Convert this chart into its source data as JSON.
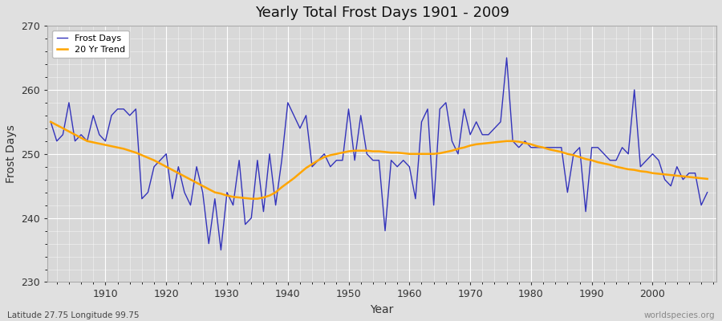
{
  "title": "Yearly Total Frost Days 1901 - 2009",
  "xlabel": "Year",
  "ylabel": "Frost Days",
  "subtitle": "Latitude 27.75 Longitude 99.75",
  "watermark": "worldspecies.org",
  "ylim": [
    230,
    270
  ],
  "yticks": [
    230,
    240,
    250,
    260,
    270
  ],
  "legend_labels": [
    "Frost Days",
    "20 Yr Trend"
  ],
  "frost_color": "#3333bb",
  "trend_color": "#FFA500",
  "bg_color": "#e0e0e0",
  "plot_bg_color": "#d8d8d8",
  "years": [
    1901,
    1902,
    1903,
    1904,
    1905,
    1906,
    1907,
    1908,
    1909,
    1910,
    1911,
    1912,
    1913,
    1914,
    1915,
    1916,
    1917,
    1918,
    1919,
    1920,
    1921,
    1922,
    1923,
    1924,
    1925,
    1926,
    1927,
    1928,
    1929,
    1930,
    1931,
    1932,
    1933,
    1934,
    1935,
    1936,
    1937,
    1938,
    1939,
    1940,
    1941,
    1942,
    1943,
    1944,
    1945,
    1946,
    1947,
    1948,
    1949,
    1950,
    1951,
    1952,
    1953,
    1954,
    1955,
    1956,
    1957,
    1958,
    1959,
    1960,
    1961,
    1962,
    1963,
    1964,
    1965,
    1966,
    1967,
    1968,
    1969,
    1970,
    1971,
    1972,
    1973,
    1974,
    1975,
    1976,
    1977,
    1978,
    1979,
    1980,
    1981,
    1982,
    1983,
    1984,
    1985,
    1986,
    1987,
    1988,
    1989,
    1990,
    1991,
    1992,
    1993,
    1994,
    1995,
    1996,
    1997,
    1998,
    1999,
    2000,
    2001,
    2002,
    2003,
    2004,
    2005,
    2006,
    2007,
    2008,
    2009
  ],
  "frost_days": [
    255,
    252,
    253,
    258,
    252,
    253,
    252,
    256,
    253,
    252,
    256,
    257,
    257,
    256,
    257,
    243,
    244,
    248,
    249,
    250,
    243,
    248,
    244,
    242,
    248,
    244,
    236,
    243,
    235,
    244,
    242,
    249,
    239,
    240,
    249,
    241,
    250,
    242,
    249,
    258,
    256,
    254,
    256,
    248,
    249,
    250,
    248,
    249,
    249,
    257,
    249,
    256,
    250,
    249,
    249,
    238,
    249,
    248,
    249,
    248,
    243,
    255,
    257,
    242,
    257,
    258,
    252,
    250,
    257,
    253,
    255,
    253,
    253,
    254,
    255,
    265,
    252,
    251,
    252,
    251,
    251,
    251,
    251,
    251,
    251,
    244,
    250,
    251,
    241,
    251,
    251,
    250,
    249,
    249,
    251,
    250,
    260,
    248,
    249,
    250,
    249,
    246,
    245,
    248,
    246,
    247,
    247,
    242,
    244
  ],
  "trend_values": [
    255.0,
    254.5,
    254.0,
    253.5,
    253.0,
    252.5,
    252.0,
    251.8,
    251.6,
    251.4,
    251.2,
    251.0,
    250.8,
    250.5,
    250.2,
    249.8,
    249.4,
    249.0,
    248.5,
    248.0,
    247.5,
    247.0,
    246.5,
    246.0,
    245.5,
    245.0,
    244.5,
    244.0,
    243.8,
    243.5,
    243.3,
    243.2,
    243.1,
    243.0,
    243.0,
    243.2,
    243.5,
    244.0,
    244.8,
    245.5,
    246.2,
    247.0,
    247.8,
    248.4,
    249.0,
    249.5,
    249.8,
    250.0,
    250.2,
    250.4,
    250.5,
    250.5,
    250.5,
    250.4,
    250.4,
    250.3,
    250.2,
    250.2,
    250.1,
    250.0,
    250.0,
    250.0,
    250.0,
    250.0,
    250.1,
    250.3,
    250.5,
    250.8,
    251.0,
    251.3,
    251.5,
    251.6,
    251.7,
    251.8,
    251.9,
    252.0,
    252.0,
    251.9,
    251.7,
    251.5,
    251.2,
    251.0,
    250.7,
    250.5,
    250.3,
    250.0,
    249.8,
    249.5,
    249.2,
    249.0,
    248.7,
    248.5,
    248.3,
    248.0,
    247.8,
    247.6,
    247.5,
    247.3,
    247.2,
    247.0,
    246.9,
    246.8,
    246.7,
    246.6,
    246.5,
    246.4,
    246.3,
    246.2,
    246.1
  ]
}
